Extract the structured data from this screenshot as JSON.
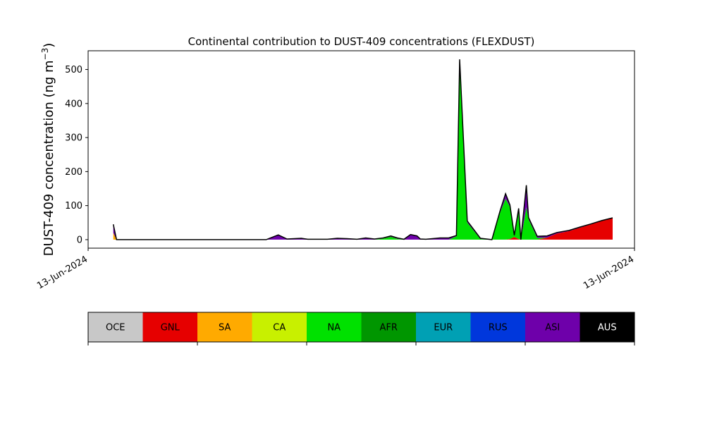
{
  "chart_data": {
    "type": "area",
    "stacked": true,
    "title": "Continental contribution to DUST-409 concentrations (FLEXDUST)",
    "ylabel_main": "DUST-409 concentration (ng m",
    "ylabel_sup": "−3",
    "ylabel_close": ")",
    "xlabel": "",
    "ylim": [
      -25,
      555
    ],
    "xlim": [
      0,
      1
    ],
    "yticks": [
      0,
      100,
      200,
      300,
      400,
      500
    ],
    "xtick_labels": [
      "13-Jun-2024",
      "13-Jun-2024"
    ],
    "grid": false,
    "x": [
      0.046,
      0.052,
      0.062,
      0.326,
      0.348,
      0.364,
      0.39,
      0.402,
      0.42,
      0.438,
      0.456,
      0.474,
      0.492,
      0.508,
      0.524,
      0.54,
      0.554,
      0.566,
      0.578,
      0.59,
      0.602,
      0.608,
      0.618,
      0.644,
      0.66,
      0.674,
      0.68,
      0.694,
      0.718,
      0.739,
      0.754,
      0.764,
      0.772,
      0.78,
      0.788,
      0.792,
      0.802,
      0.806,
      0.822,
      0.84,
      0.858,
      0.88,
      0.9,
      0.92,
      0.94,
      0.96
    ],
    "series": [
      {
        "name": "OCE",
        "color": "#c8c8c8",
        "values": [
          0,
          0,
          0,
          0,
          0,
          0,
          0,
          0,
          0,
          0,
          0,
          0,
          0,
          0,
          0,
          0,
          0,
          0,
          0,
          0,
          0,
          0,
          0,
          0,
          0,
          0,
          0,
          0,
          0,
          0,
          0,
          0,
          0,
          0,
          0,
          0,
          0,
          0,
          0,
          0,
          0,
          0,
          0,
          0,
          0,
          0
        ]
      },
      {
        "name": "GNL",
        "color": "#e60000",
        "values": [
          0,
          0,
          0,
          0,
          0,
          0,
          0,
          0,
          0,
          0,
          0,
          0,
          0,
          0,
          0,
          0,
          0,
          0,
          0,
          0,
          0,
          0,
          0,
          0,
          0,
          0,
          0,
          0,
          0,
          0,
          0,
          0,
          2,
          8,
          2,
          0,
          0,
          0,
          0,
          6,
          18,
          25,
          35,
          45,
          55,
          63
        ]
      },
      {
        "name": "SA",
        "color": "#ffaa00",
        "values": [
          20,
          0,
          0,
          0,
          0,
          0,
          0,
          0,
          0,
          0,
          0,
          0,
          0,
          0,
          0,
          0,
          0,
          0,
          0,
          0,
          0,
          0,
          0,
          0,
          0,
          0,
          0,
          0,
          0,
          0,
          0,
          0,
          0,
          0,
          0,
          0,
          0,
          0,
          0,
          0,
          0,
          0,
          0,
          0,
          0,
          0
        ]
      },
      {
        "name": "CA",
        "color": "#c8f000",
        "values": [
          0,
          0,
          0,
          0,
          0,
          0,
          0,
          0,
          0,
          0,
          0,
          0,
          0,
          0,
          0,
          0,
          0,
          0,
          0,
          0,
          0,
          0,
          0,
          0,
          0,
          0,
          0,
          0,
          0,
          0,
          0,
          0,
          0,
          0,
          0,
          0,
          0,
          0,
          0,
          0,
          0,
          0,
          0,
          0,
          0,
          0
        ]
      },
      {
        "name": "NA",
        "color": "#00e100",
        "values": [
          0,
          0,
          0,
          0,
          0,
          0,
          0,
          0,
          0,
          0,
          0,
          0,
          0,
          0,
          0,
          3,
          7,
          2,
          0,
          0,
          0,
          0,
          0,
          0,
          0,
          10,
          515,
          50,
          2,
          0,
          80,
          120,
          95,
          5,
          85,
          0,
          95,
          60,
          5,
          0,
          0,
          0,
          0,
          0,
          0,
          0
        ]
      },
      {
        "name": "AFR",
        "color": "#009600",
        "values": [
          0,
          0,
          0,
          0,
          0,
          0,
          0,
          0,
          0,
          0,
          0,
          0,
          0,
          0,
          0,
          1,
          2,
          1,
          0,
          0,
          0,
          0,
          0,
          0,
          0,
          0,
          0,
          0,
          0,
          0,
          0,
          0,
          0,
          0,
          0,
          0,
          0,
          0,
          0,
          0,
          0,
          0,
          0,
          0,
          0,
          0
        ]
      },
      {
        "name": "EUR",
        "color": "#00a0b4",
        "values": [
          0,
          0,
          0,
          0,
          0,
          0,
          0,
          0,
          0,
          0,
          0,
          0,
          0,
          0,
          0,
          0,
          0,
          0,
          0,
          0,
          0,
          0,
          0,
          0,
          0,
          0,
          0,
          0,
          0,
          0,
          0,
          0,
          0,
          0,
          0,
          0,
          0,
          0,
          0,
          0,
          0,
          0,
          0,
          0,
          0,
          0
        ]
      },
      {
        "name": "RUS",
        "color": "#0037dc",
        "values": [
          0,
          0,
          0,
          0,
          0,
          0,
          0,
          0,
          0,
          0,
          0,
          0,
          0,
          0,
          0,
          0,
          0,
          0,
          0,
          0,
          0,
          0,
          0,
          0,
          0,
          0,
          0,
          0,
          0,
          0,
          0,
          0,
          0,
          0,
          0,
          0,
          0,
          0,
          0,
          0,
          0,
          0,
          0,
          0,
          0,
          0
        ]
      },
      {
        "name": "ASI",
        "color": "#6e00aa",
        "values": [
          25,
          0,
          0,
          0,
          14,
          2,
          4,
          1,
          1,
          1,
          4,
          3,
          1,
          5,
          2,
          1,
          2,
          2,
          1,
          15,
          11,
          2,
          1,
          5,
          5,
          2,
          15,
          5,
          2,
          0,
          5,
          15,
          5,
          0,
          5,
          0,
          65,
          5,
          5,
          5,
          3,
          2,
          2,
          1,
          1,
          1
        ]
      },
      {
        "name": "AUS",
        "color": "#000000",
        "values": [
          0,
          0,
          0,
          0,
          0,
          0,
          0,
          0,
          0,
          0,
          0,
          0,
          0,
          0,
          0,
          0,
          0,
          0,
          0,
          0,
          0,
          0,
          0,
          0,
          0,
          0,
          0,
          0,
          0,
          0,
          0,
          0,
          0,
          0,
          0,
          0,
          0,
          0,
          0,
          0,
          0,
          0,
          0,
          0,
          0,
          0
        ]
      }
    ],
    "legend": {
      "placement": "bottom",
      "entries": [
        {
          "label": "OCE",
          "color": "#c8c8c8",
          "text_color": "#000000"
        },
        {
          "label": "GNL",
          "color": "#e60000",
          "text_color": "#000000"
        },
        {
          "label": "SA",
          "color": "#ffaa00",
          "text_color": "#000000"
        },
        {
          "label": "CA",
          "color": "#c8f000",
          "text_color": "#000000"
        },
        {
          "label": "NA",
          "color": "#00e100",
          "text_color": "#000000"
        },
        {
          "label": "AFR",
          "color": "#009600",
          "text_color": "#000000"
        },
        {
          "label": "EUR",
          "color": "#00a0b4",
          "text_color": "#000000"
        },
        {
          "label": "RUS",
          "color": "#0037dc",
          "text_color": "#000000"
        },
        {
          "label": "ASI",
          "color": "#6e00aa",
          "text_color": "#000000"
        },
        {
          "label": "AUS",
          "color": "#000000",
          "text_color": "#ffffff"
        }
      ]
    }
  }
}
